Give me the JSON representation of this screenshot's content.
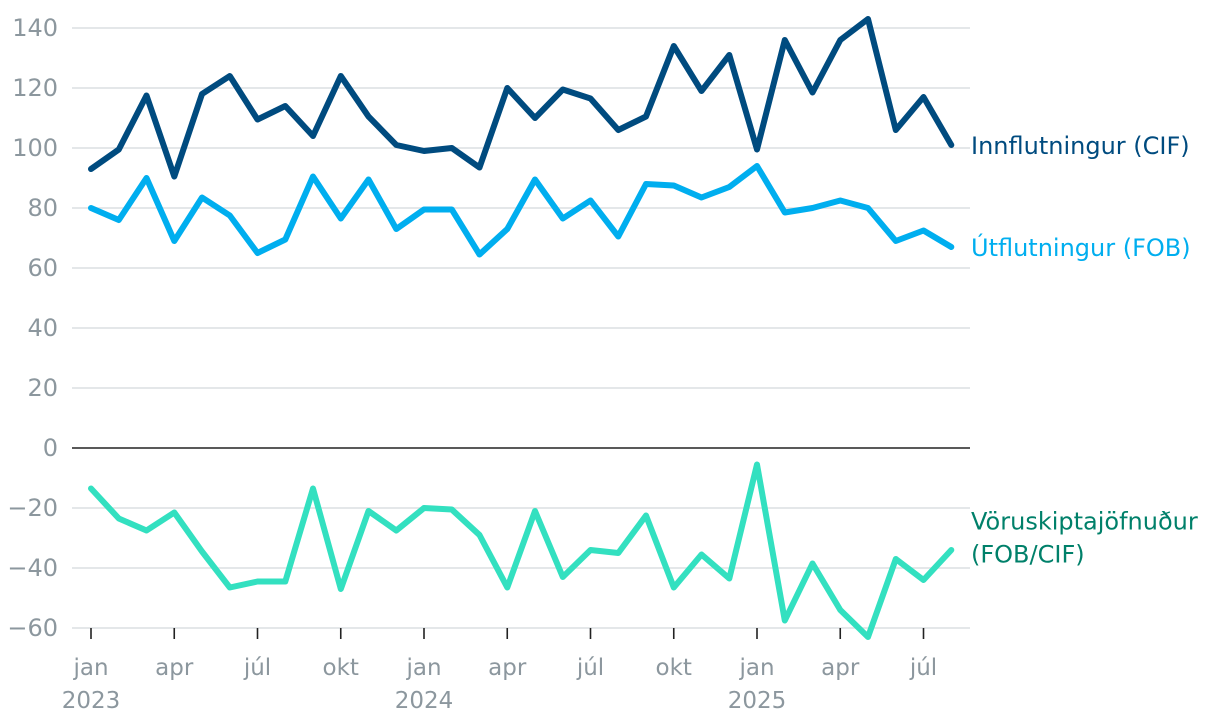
{
  "chart_data": {
    "type": "line",
    "title": "",
    "xlabel": "",
    "ylabel": "",
    "ylim": [
      -60,
      140
    ],
    "yticks": [
      140,
      120,
      100,
      80,
      60,
      40,
      20,
      0,
      -20,
      -40,
      -60
    ],
    "ytick_labels": [
      "140",
      "120",
      "100",
      "80",
      "60",
      "40",
      "20",
      "0",
      "−20",
      "−40",
      "−60"
    ],
    "grid": true,
    "legend": "inline-right",
    "x": [
      "2023-01",
      "2023-02",
      "2023-03",
      "2023-04",
      "2023-05",
      "2023-06",
      "2023-07",
      "2023-08",
      "2023-09",
      "2023-10",
      "2023-11",
      "2023-12",
      "2024-01",
      "2024-02",
      "2024-03",
      "2024-04",
      "2024-05",
      "2024-06",
      "2024-07",
      "2024-08",
      "2024-09",
      "2024-10",
      "2024-11",
      "2024-12",
      "2025-01",
      "2025-02",
      "2025-03",
      "2025-04",
      "2025-05",
      "2025-06",
      "2025-07",
      "2025-08"
    ],
    "xticks": [
      {
        "month": "2023-01",
        "label": "jan",
        "year": "2023"
      },
      {
        "month": "2023-04",
        "label": "apr",
        "year": ""
      },
      {
        "month": "2023-07",
        "label": "júl",
        "year": ""
      },
      {
        "month": "2023-10",
        "label": "okt",
        "year": ""
      },
      {
        "month": "2024-01",
        "label": "jan",
        "year": "2024"
      },
      {
        "month": "2024-04",
        "label": "apr",
        "year": ""
      },
      {
        "month": "2024-07",
        "label": "júl",
        "year": ""
      },
      {
        "month": "2024-10",
        "label": "okt",
        "year": ""
      },
      {
        "month": "2025-01",
        "label": "jan",
        "year": "2025"
      },
      {
        "month": "2025-04",
        "label": "apr",
        "year": ""
      },
      {
        "month": "2025-07",
        "label": "júl",
        "year": ""
      }
    ],
    "series": [
      {
        "name": "Innflutningur (CIF)",
        "color": "#004b7f",
        "label_lines": [
          "Innflutningur (CIF)"
        ],
        "values": [
          93,
          99.5,
          117.5,
          90.5,
          118,
          124,
          109.5,
          114,
          104,
          124,
          110.5,
          101,
          99,
          100,
          93.5,
          120,
          110,
          119.5,
          116.5,
          106,
          110.5,
          134,
          119,
          131,
          99.5,
          136,
          118.5,
          136,
          143,
          106,
          117,
          101
        ]
      },
      {
        "name": "Útflutningur (FOB)",
        "color": "#00aeef",
        "label_lines": [
          "Útflutningur (FOB)"
        ],
        "values": [
          80,
          76,
          90,
          69,
          83.5,
          77.5,
          65,
          69.5,
          90.5,
          76.5,
          89.5,
          73,
          79.5,
          79.5,
          64.5,
          73,
          89.5,
          76.5,
          82.5,
          70.5,
          88,
          87.5,
          83.5,
          87,
          94,
          78.5,
          80,
          82.5,
          80,
          69,
          72.5,
          67
        ]
      },
      {
        "name": "Vöruskiptajöfnuður (FOB/CIF)",
        "color": "#33e0c0",
        "label_color": "#00806a",
        "label_lines": [
          "Vöruskiptajöfnuður",
          "(FOB/CIF)"
        ],
        "values": [
          -13.5,
          -23.5,
          -27.5,
          -21.5,
          -34.5,
          -46.5,
          -44.5,
          -44.5,
          -13.5,
          -47,
          -21,
          -27.5,
          -20,
          -20.5,
          -29,
          -46.5,
          -21,
          -43,
          -34,
          -35,
          -22.5,
          -46.5,
          -35.5,
          -43.5,
          -5.5,
          -57.5,
          -38.5,
          -54,
          -63,
          -37,
          -44,
          -34
        ]
      }
    ]
  }
}
